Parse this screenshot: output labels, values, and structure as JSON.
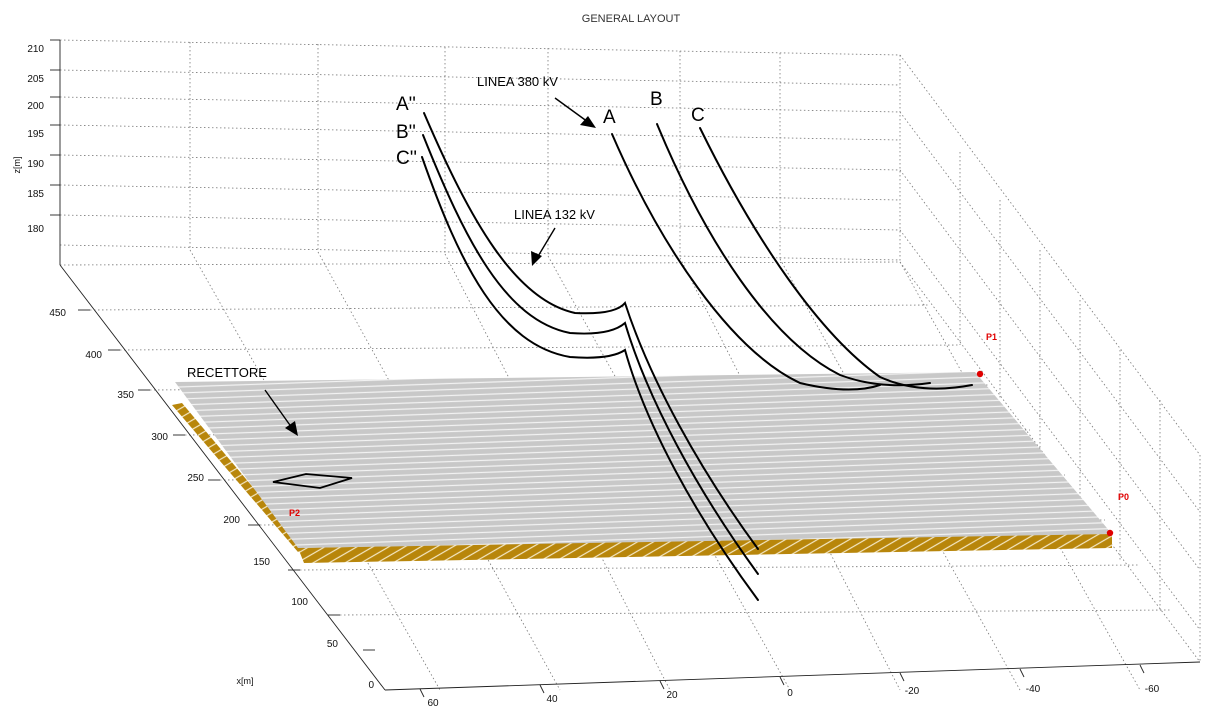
{
  "title": "GENERAL LAYOUT",
  "axes": {
    "z_label": "z[m]",
    "x_label": "x[m]",
    "z_ticks": [
      "210",
      "205",
      "200",
      "195",
      "190",
      "185",
      "180"
    ],
    "x_ticks": [
      "450",
      "400",
      "350",
      "300",
      "250",
      "200",
      "150",
      "100",
      "50",
      "0"
    ],
    "y_ticks": [
      "60",
      "40",
      "20",
      "0",
      "-20",
      "-40",
      "-60"
    ]
  },
  "labels": {
    "phase_A2": "A''",
    "phase_B2": "B''",
    "phase_C2": "C''",
    "phase_A": "A",
    "phase_B": "B",
    "phase_C": "C",
    "line_380": "LINEA 380 kV",
    "line_132": "LINEA 132 kV",
    "receptor": "RECETTORE",
    "p0": "P0",
    "p1": "P1",
    "p2": "P2"
  },
  "colors": {
    "plane": "#c8c8c8",
    "plane_stripe": "#f2f2f2",
    "ground_edge": "#b8860b",
    "point": "#e00000"
  }
}
